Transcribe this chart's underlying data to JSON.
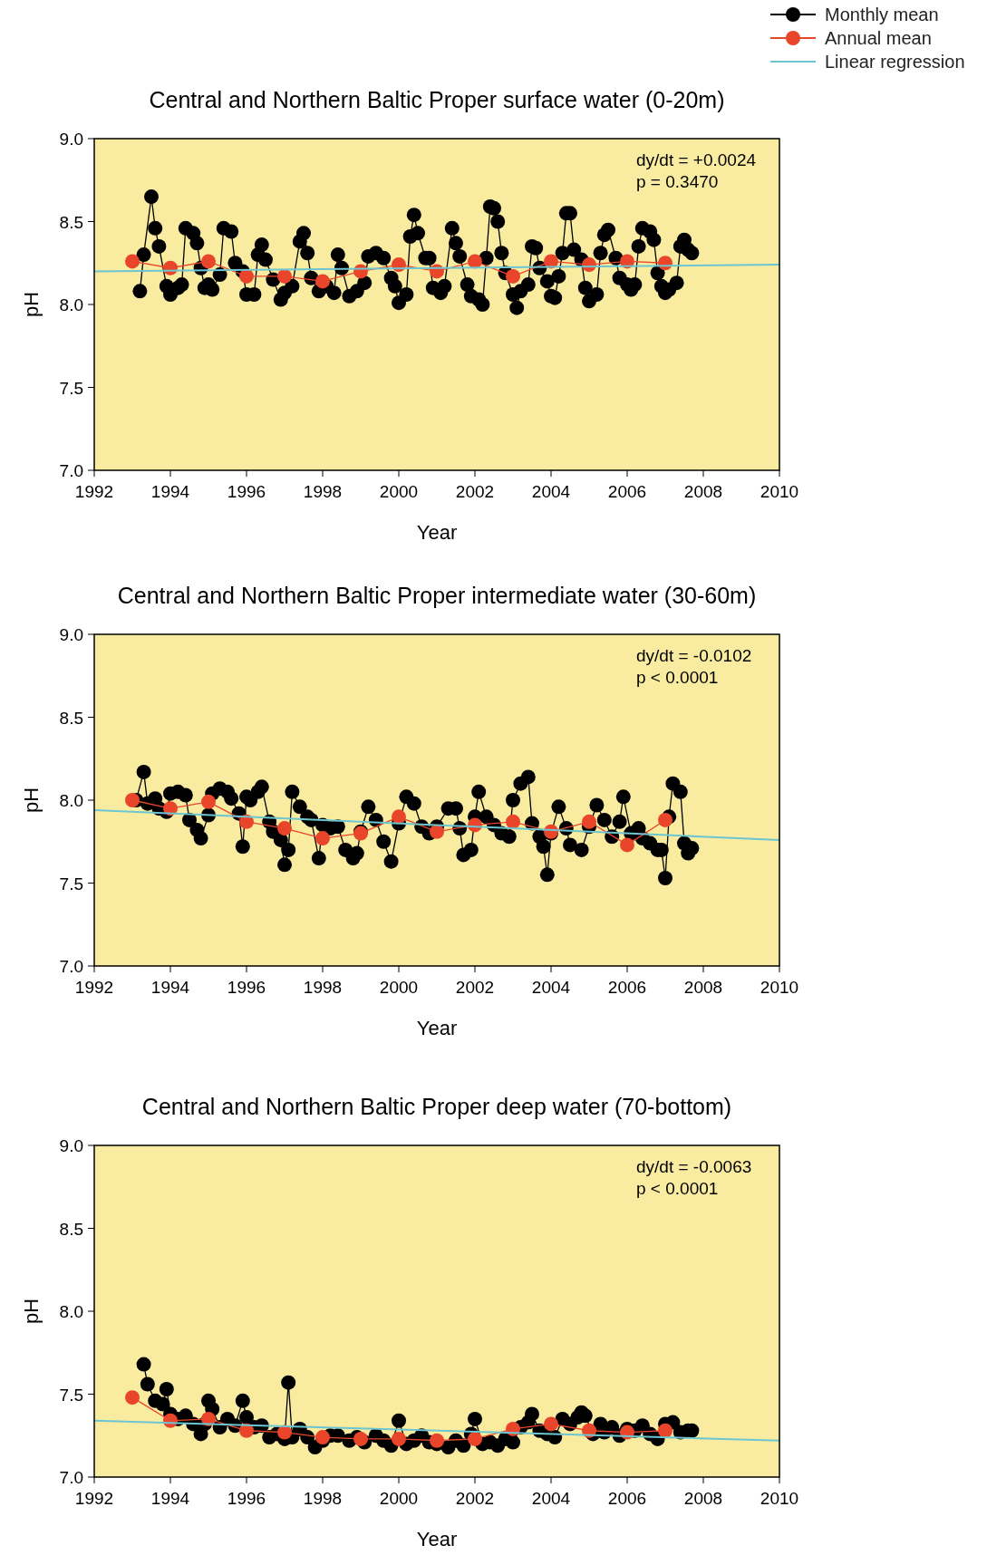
{
  "chart_data": [
    {
      "type": "line",
      "title": "Central and Northern Baltic Proper surface water (0-20m)",
      "xlabel": "Year",
      "ylabel": "pH",
      "legend": "top right",
      "line_style": "solid",
      "xlim": [
        1992,
        2010
      ],
      "xticks": [
        1992,
        1994,
        1996,
        1998,
        2000,
        2002,
        2004,
        2006,
        2008,
        2010
      ],
      "ylim": [
        7,
        9
      ],
      "yticks": [
        {
          "value": 7,
          "label": "7.0"
        },
        {
          "value": 7.5,
          "label": "7.5"
        },
        {
          "value": 8,
          "label": "8.0"
        },
        {
          "value": 8.5,
          "label": "8.5"
        },
        {
          "value": 9,
          "label": "9.0"
        }
      ],
      "annotations": [
        "dy/dt = +0.0024",
        "p = 0.3470"
      ],
      "series": [
        {
          "name": "Monthly mean",
          "color": "#000000",
          "marker": "circle",
          "x": [
            1993.2,
            1993.3,
            1993.5,
            1993.6,
            1993.7,
            1993.9,
            1994.0,
            1994.2,
            1994.3,
            1994.4,
            1994.6,
            1994.7,
            1994.8,
            1994.9,
            1995.0,
            1995.1,
            1995.3,
            1995.4,
            1995.6,
            1995.7,
            1995.9,
            1996.0,
            1996.2,
            1996.3,
            1996.4,
            1996.5,
            1996.7,
            1996.9,
            1997.0,
            1997.2,
            1997.4,
            1997.5,
            1997.6,
            1997.7,
            1997.9,
            1998.1,
            1998.3,
            1998.4,
            1998.5,
            1998.7,
            1998.9,
            1999.1,
            1999.2,
            1999.4,
            1999.6,
            1999.8,
            1999.9,
            2000.0,
            2000.2,
            2000.3,
            2000.4,
            2000.5,
            2000.7,
            2000.8,
            2000.9,
            2001.1,
            2001.2,
            2001.4,
            2001.5,
            2001.6,
            2001.8,
            2001.9,
            2002.1,
            2002.2,
            2002.3,
            2002.4,
            2002.5,
            2002.6,
            2002.7,
            2002.8,
            2003.0,
            2003.1,
            2003.2,
            2003.4,
            2003.5,
            2003.6,
            2003.7,
            2003.9,
            2004.0,
            2004.1,
            2004.2,
            2004.3,
            2004.4,
            2004.5,
            2004.6,
            2004.8,
            2004.9,
            2005.0,
            2005.2,
            2005.3,
            2005.4,
            2005.5,
            2005.7,
            2005.8,
            2006.0,
            2006.1,
            2006.2,
            2006.3,
            2006.4,
            2006.6,
            2006.7,
            2006.8,
            2006.9,
            2007.0,
            2007.1,
            2007.3,
            2007.4,
            2007.5,
            2007.6,
            2007.7
          ],
          "values": [
            8.08,
            8.3,
            8.65,
            8.46,
            8.35,
            8.11,
            8.06,
            8.1,
            8.12,
            8.46,
            8.43,
            8.37,
            8.22,
            8.1,
            8.12,
            8.09,
            8.18,
            8.46,
            8.44,
            8.25,
            8.2,
            8.06,
            8.06,
            8.3,
            8.36,
            8.27,
            8.15,
            8.03,
            8.07,
            8.11,
            8.38,
            8.43,
            8.31,
            8.16,
            8.08,
            8.11,
            8.07,
            8.3,
            8.22,
            8.05,
            8.08,
            8.13,
            8.29,
            8.31,
            8.28,
            8.16,
            8.11,
            8.01,
            8.06,
            8.41,
            8.54,
            8.43,
            8.28,
            8.28,
            8.1,
            8.07,
            8.11,
            8.46,
            8.37,
            8.29,
            8.12,
            8.05,
            8.03,
            8.0,
            8.28,
            8.59,
            8.58,
            8.5,
            8.31,
            8.19,
            8.06,
            7.98,
            8.08,
            8.12,
            8.35,
            8.34,
            8.22,
            8.14,
            8.05,
            8.04,
            8.17,
            8.31,
            8.55,
            8.55,
            8.33,
            8.27,
            8.1,
            8.02,
            8.06,
            8.31,
            8.42,
            8.45,
            8.28,
            8.16,
            8.12,
            8.09,
            8.12,
            8.35,
            8.46,
            8.44,
            8.39,
            8.19,
            8.11,
            8.07,
            8.09,
            8.13,
            8.35,
            8.39,
            8.33,
            8.31
          ]
        },
        {
          "name": "Annual mean",
          "color": "#e8452a",
          "marker": "circle",
          "x": [
            1993,
            1994,
            1995,
            1996,
            1997,
            1998,
            1999,
            2000,
            2001,
            2002,
            2003,
            2004,
            2005,
            2006,
            2007
          ],
          "values": [
            8.26,
            8.22,
            8.26,
            8.17,
            8.17,
            8.14,
            8.2,
            8.24,
            8.2,
            8.26,
            8.17,
            8.26,
            8.24,
            8.26,
            8.25
          ]
        },
        {
          "name": "Linear regression",
          "color": "#6cc5d1",
          "marker": "none",
          "x": [
            1992,
            2010
          ],
          "values": [
            8.2,
            8.24
          ]
        }
      ]
    },
    {
      "type": "line",
      "title": "Central and Northern Baltic Proper intermediate water (30-60m)",
      "xlabel": "Year",
      "ylabel": "pH",
      "line_style": "solid",
      "xlim": [
        1992,
        2010
      ],
      "xticks": [
        1992,
        1994,
        1996,
        1998,
        2000,
        2002,
        2004,
        2006,
        2008,
        2010
      ],
      "ylim": [
        7,
        9
      ],
      "yticks": [
        {
          "value": 7,
          "label": "7.0"
        },
        {
          "value": 7.5,
          "label": "7.5"
        },
        {
          "value": 8,
          "label": "8.0"
        },
        {
          "value": 8.5,
          "label": "8.5"
        },
        {
          "value": 9,
          "label": "9.0"
        }
      ],
      "annotations": [
        "dy/dt = -0.0102",
        "p < 0.0001"
      ],
      "series": [
        {
          "color": "#000000",
          "marker": "circle",
          "x": [
            1993.1,
            1993.3,
            1993.4,
            1993.6,
            1993.7,
            1993.9,
            1994.0,
            1994.2,
            1994.4,
            1994.5,
            1994.7,
            1994.8,
            1995.0,
            1995.1,
            1995.3,
            1995.5,
            1995.6,
            1995.8,
            1995.9,
            1996.0,
            1996.1,
            1996.3,
            1996.4,
            1996.6,
            1996.7,
            1996.9,
            1997.0,
            1997.1,
            1997.2,
            1997.4,
            1997.6,
            1997.7,
            1997.9,
            1998.0,
            1998.2,
            1998.4,
            1998.6,
            1998.8,
            1998.9,
            1999.0,
            1999.2,
            1999.4,
            1999.6,
            1999.8,
            2000.0,
            2000.2,
            2000.4,
            2000.6,
            2000.8,
            2001.0,
            2001.3,
            2001.5,
            2001.6,
            2001.7,
            2001.9,
            2002.0,
            2002.1,
            2002.3,
            2002.5,
            2002.7,
            2002.9,
            2003.0,
            2003.2,
            2003.4,
            2003.5,
            2003.7,
            2003.8,
            2003.9,
            2004.0,
            2004.2,
            2004.4,
            2004.5,
            2004.8,
            2005.0,
            2005.2,
            2005.4,
            2005.6,
            2005.8,
            2005.9,
            2006.1,
            2006.3,
            2006.4,
            2006.6,
            2006.8,
            2006.9,
            2007.0,
            2007.1,
            2007.2,
            2007.4,
            2007.5,
            2007.6,
            2007.7
          ],
          "values": [
            8.0,
            8.17,
            7.98,
            8.01,
            7.95,
            7.93,
            8.04,
            8.05,
            8.03,
            7.88,
            7.82,
            7.77,
            7.91,
            8.04,
            8.07,
            8.05,
            8.01,
            7.92,
            7.72,
            8.02,
            8.0,
            8.05,
            8.08,
            7.87,
            7.81,
            7.76,
            7.61,
            7.7,
            8.05,
            7.96,
            7.9,
            7.88,
            7.65,
            7.85,
            7.83,
            7.84,
            7.7,
            7.65,
            7.68,
            7.81,
            7.96,
            7.88,
            7.75,
            7.63,
            7.86,
            8.02,
            7.98,
            7.84,
            7.8,
            7.84,
            7.95,
            7.95,
            7.83,
            7.67,
            7.7,
            7.9,
            8.05,
            7.9,
            7.85,
            7.8,
            7.78,
            8.0,
            8.1,
            8.14,
            7.86,
            7.78,
            7.72,
            7.55,
            7.8,
            7.96,
            7.83,
            7.73,
            7.7,
            7.84,
            7.97,
            7.88,
            7.78,
            7.87,
            8.02,
            7.8,
            7.83,
            7.77,
            7.74,
            7.7,
            7.7,
            7.53,
            7.9,
            8.1,
            8.05,
            7.74,
            7.68,
            7.71
          ]
        },
        {
          "color": "#e8452a",
          "marker": "circle",
          "x": [
            1993,
            1994,
            1995,
            1996,
            1997,
            1998,
            1999,
            2000,
            2001,
            2002,
            2003,
            2004,
            2005,
            2006,
            2007
          ],
          "values": [
            8.0,
            7.95,
            7.99,
            7.87,
            7.83,
            7.77,
            7.8,
            7.9,
            7.81,
            7.85,
            7.87,
            7.81,
            7.87,
            7.73,
            7.88
          ]
        },
        {
          "color": "#6cc5d1",
          "marker": "none",
          "x": [
            1992,
            2010
          ],
          "values": [
            7.94,
            7.76
          ]
        }
      ]
    },
    {
      "type": "line",
      "title": "Central and Northern Baltic Proper deep water (70-bottom)",
      "xlabel": "Year",
      "ylabel": "pH",
      "line_style": "solid",
      "xlim": [
        1992,
        2010
      ],
      "xticks": [
        1992,
        1994,
        1996,
        1998,
        2000,
        2002,
        2004,
        2006,
        2008,
        2010
      ],
      "ylim": [
        7,
        9
      ],
      "yticks": [
        {
          "value": 7,
          "label": "7.0"
        },
        {
          "value": 7.5,
          "label": "7.5"
        },
        {
          "value": 8,
          "label": "8.0"
        },
        {
          "value": 8.5,
          "label": "8.5"
        },
        {
          "value": 9,
          "label": "9.0"
        }
      ],
      "annotations": [
        "dy/dt = -0.0063",
        "p < 0.0001"
      ],
      "series": [
        {
          "color": "#000000",
          "marker": "circle",
          "x": [
            1993.3,
            1993.4,
            1993.6,
            1993.8,
            1993.9,
            1994.0,
            1994.2,
            1994.4,
            1994.6,
            1994.8,
            1994.9,
            1995.0,
            1995.1,
            1995.3,
            1995.5,
            1995.7,
            1995.9,
            1996.0,
            1996.2,
            1996.4,
            1996.6,
            1996.8,
            1997.0,
            1997.1,
            1997.2,
            1997.4,
            1997.6,
            1997.8,
            1998.0,
            1998.2,
            1998.4,
            1998.7,
            1998.9,
            1999.1,
            1999.4,
            1999.6,
            1999.8,
            2000.0,
            2000.2,
            2000.4,
            2000.6,
            2000.8,
            2001.0,
            2001.3,
            2001.5,
            2001.7,
            2001.9,
            2002.0,
            2002.2,
            2002.4,
            2002.6,
            2002.8,
            2003.0,
            2003.2,
            2003.4,
            2003.5,
            2003.7,
            2003.9,
            2004.1,
            2004.3,
            2004.5,
            2004.7,
            2004.8,
            2004.9,
            2005.1,
            2005.3,
            2005.4,
            2005.6,
            2005.8,
            2006.0,
            2006.2,
            2006.4,
            2006.6,
            2006.8,
            2007.0,
            2007.2,
            2007.4,
            2007.6,
            2007.7
          ],
          "values": [
            7.68,
            7.56,
            7.46,
            7.44,
            7.53,
            7.38,
            7.35,
            7.37,
            7.32,
            7.26,
            7.32,
            7.46,
            7.41,
            7.3,
            7.35,
            7.31,
            7.46,
            7.36,
            7.3,
            7.31,
            7.24,
            7.26,
            7.23,
            7.57,
            7.24,
            7.29,
            7.24,
            7.18,
            7.22,
            7.25,
            7.25,
            7.22,
            7.24,
            7.21,
            7.25,
            7.22,
            7.19,
            7.34,
            7.2,
            7.22,
            7.25,
            7.21,
            7.2,
            7.18,
            7.22,
            7.19,
            7.26,
            7.35,
            7.2,
            7.21,
            7.19,
            7.23,
            7.21,
            7.3,
            7.33,
            7.38,
            7.28,
            7.26,
            7.24,
            7.35,
            7.32,
            7.36,
            7.39,
            7.37,
            7.26,
            7.32,
            7.27,
            7.3,
            7.25,
            7.29,
            7.28,
            7.31,
            7.26,
            7.23,
            7.32,
            7.33,
            7.27,
            7.28,
            7.28
          ]
        },
        {
          "color": "#e8452a",
          "marker": "circle",
          "x": [
            1993,
            1994,
            1995,
            1996,
            1997,
            1998,
            1999,
            2000,
            2001,
            2002,
            2003,
            2004,
            2005,
            2006,
            2007
          ],
          "values": [
            7.48,
            7.34,
            7.35,
            7.28,
            7.27,
            7.24,
            7.23,
            7.23,
            7.22,
            7.23,
            7.29,
            7.32,
            7.28,
            7.27,
            7.28
          ]
        },
        {
          "color": "#6cc5d1",
          "marker": "none",
          "x": [
            1992,
            2010
          ],
          "values": [
            7.34,
            7.22
          ]
        }
      ]
    }
  ]
}
